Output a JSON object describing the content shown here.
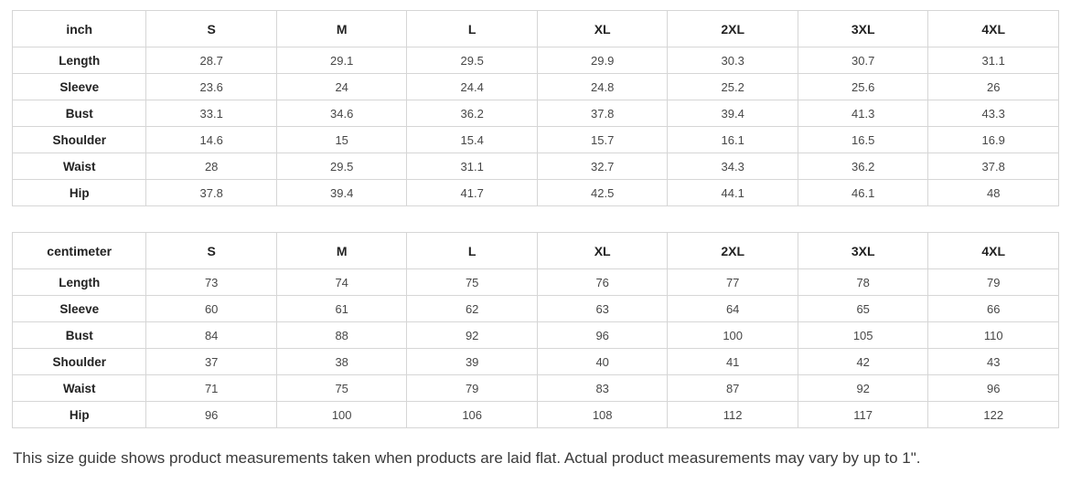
{
  "tables": [
    {
      "unit_label": "inch",
      "columns": [
        "S",
        "M",
        "L",
        "XL",
        "2XL",
        "3XL",
        "4XL"
      ],
      "rows": [
        {
          "label": "Length",
          "values": [
            "28.7",
            "29.1",
            "29.5",
            "29.9",
            "30.3",
            "30.7",
            "31.1"
          ]
        },
        {
          "label": "Sleeve",
          "values": [
            "23.6",
            "24",
            "24.4",
            "24.8",
            "25.2",
            "25.6",
            "26"
          ]
        },
        {
          "label": "Bust",
          "values": [
            "33.1",
            "34.6",
            "36.2",
            "37.8",
            "39.4",
            "41.3",
            "43.3"
          ]
        },
        {
          "label": "Shoulder",
          "values": [
            "14.6",
            "15",
            "15.4",
            "15.7",
            "16.1",
            "16.5",
            "16.9"
          ]
        },
        {
          "label": "Waist",
          "values": [
            "28",
            "29.5",
            "31.1",
            "32.7",
            "34.3",
            "36.2",
            "37.8"
          ]
        },
        {
          "label": "Hip",
          "values": [
            "37.8",
            "39.4",
            "41.7",
            "42.5",
            "44.1",
            "46.1",
            "48"
          ]
        }
      ]
    },
    {
      "unit_label": "centimeter",
      "columns": [
        "S",
        "M",
        "L",
        "XL",
        "2XL",
        "3XL",
        "4XL"
      ],
      "rows": [
        {
          "label": "Length",
          "values": [
            "73",
            "74",
            "75",
            "76",
            "77",
            "78",
            "79"
          ]
        },
        {
          "label": "Sleeve",
          "values": [
            "60",
            "61",
            "62",
            "63",
            "64",
            "65",
            "66"
          ]
        },
        {
          "label": "Bust",
          "values": [
            "84",
            "88",
            "92",
            "96",
            "100",
            "105",
            "110"
          ]
        },
        {
          "label": "Shoulder",
          "values": [
            "37",
            "38",
            "39",
            "40",
            "41",
            "42",
            "43"
          ]
        },
        {
          "label": "Waist",
          "values": [
            "71",
            "75",
            "79",
            "83",
            "87",
            "92",
            "96"
          ]
        },
        {
          "label": "Hip",
          "values": [
            "96",
            "100",
            "106",
            "108",
            "112",
            "117",
            "122"
          ]
        }
      ]
    }
  ],
  "footer": {
    "note": "This size guide shows product measurements taken when products are laid flat. Actual product measurements may vary by up to 1\"."
  }
}
